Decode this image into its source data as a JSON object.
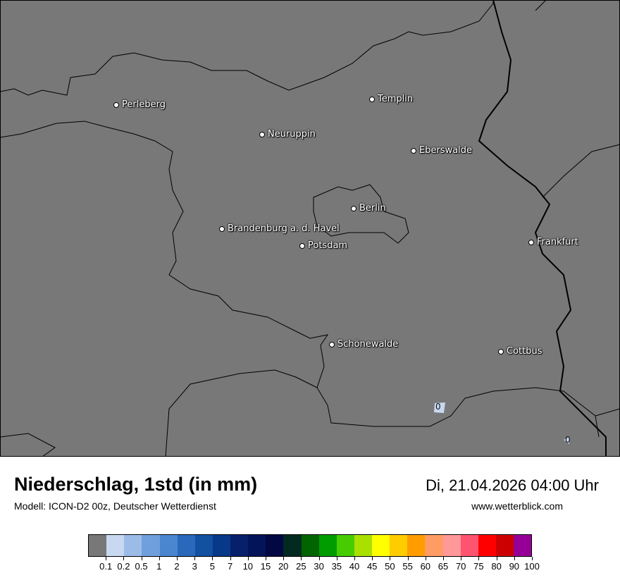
{
  "header": {
    "title": "Niederschlag, 1std (in mm)",
    "subtitle": "Modell: ICON-D2 00z, Deutscher Wetterdienst",
    "datetime": "Di, 21.04.2026 04:00 Uhr",
    "website": "www.wetterblick.com"
  },
  "map": {
    "background_color": "#787878",
    "cities": [
      {
        "name": "Perleberg"
      },
      {
        "name": "Neuruppin"
      },
      {
        "name": "Templin"
      },
      {
        "name": "Eberswalde"
      },
      {
        "name": "Berlin"
      },
      {
        "name": "Brandenburg a. d. Havel"
      },
      {
        "name": "Potsdam"
      },
      {
        "name": "Frankfurt"
      },
      {
        "name": "Schönewalde"
      },
      {
        "name": "Cottbus"
      }
    ],
    "value_labels": [
      "0",
      "0"
    ]
  },
  "legend": {
    "colors": [
      "#787878",
      "#c8d8f0",
      "#9cbce8",
      "#70a0dc",
      "#4a86d0",
      "#2a68bc",
      "#1250a0",
      "#083888",
      "#06206c",
      "#041458",
      "#020842",
      "#022a20",
      "#006400",
      "#009c00",
      "#46cc00",
      "#aae000",
      "#ffff00",
      "#ffcc00",
      "#ff9c00",
      "#ff9c64",
      "#ff9898",
      "#ff5470",
      "#ff0000",
      "#cc0000",
      "#960096"
    ],
    "labels": [
      "0.1",
      "0.2",
      "0.5",
      "1",
      "2",
      "3",
      "5",
      "7",
      "10",
      "15",
      "20",
      "25",
      "30",
      "35",
      "40",
      "45",
      "50",
      "55",
      "60",
      "65",
      "70",
      "75",
      "80",
      "90",
      "100"
    ]
  }
}
